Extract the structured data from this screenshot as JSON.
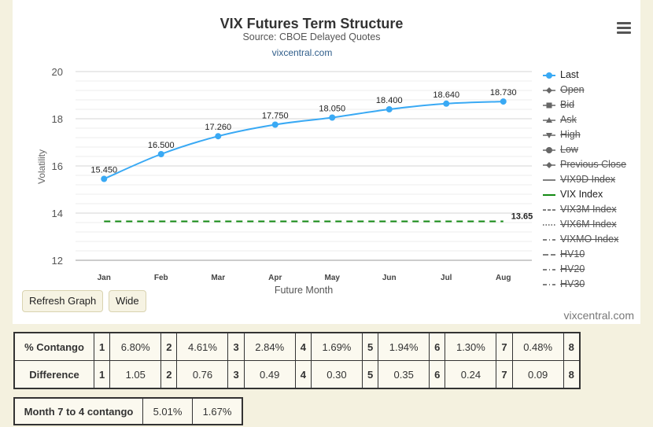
{
  "chart_data": {
    "type": "line",
    "title": "VIX Futures Term Structure",
    "subtitle": "Source: CBOE Delayed Quotes",
    "link": "vixcentral.com",
    "xlabel": "Future Month",
    "ylabel": "Volatility",
    "categories": [
      "Jan",
      "Feb",
      "Mar",
      "Apr",
      "May",
      "Jun",
      "Jul",
      "Aug"
    ],
    "ylim": [
      12,
      20
    ],
    "yticks": [
      12,
      14,
      16,
      18,
      20
    ],
    "grid": true,
    "legend_position": "right",
    "series": [
      {
        "name": "Last",
        "values": [
          15.45,
          16.5,
          17.26,
          17.75,
          18.05,
          18.4,
          18.64,
          18.73
        ],
        "labels": [
          "15.450",
          "16.500",
          "17.260",
          "17.750",
          "18.050",
          "18.400",
          "18.640",
          "18.730"
        ],
        "color": "#39a9f4"
      },
      {
        "name": "VIX Index",
        "value": 13.65,
        "label": "13.65",
        "color": "#138a13"
      }
    ]
  },
  "legend": [
    {
      "label": "Last",
      "visible": true,
      "symbol": "circle-line",
      "color": "#39a9f4"
    },
    {
      "label": "Open",
      "visible": false,
      "symbol": "diamond-line",
      "color": "#666666"
    },
    {
      "label": "Bid",
      "visible": false,
      "symbol": "square-line",
      "color": "#666666"
    },
    {
      "label": "Ask",
      "visible": false,
      "symbol": "triangle-line",
      "color": "#666666"
    },
    {
      "label": "High",
      "visible": false,
      "symbol": "triangle-down-line",
      "color": "#666666"
    },
    {
      "label": "Low",
      "visible": false,
      "symbol": "circle-line",
      "color": "#666666"
    },
    {
      "label": "Previous Close",
      "visible": false,
      "symbol": "diamond-line",
      "color": "#666666"
    },
    {
      "label": "VIX9D Index",
      "visible": false,
      "symbol": "solid",
      "color": "#555555"
    },
    {
      "label": "VIX Index",
      "visible": true,
      "symbol": "solid",
      "color": "#138a13"
    },
    {
      "label": "VIX3M Index",
      "visible": false,
      "symbol": "dash",
      "color": "#555555"
    },
    {
      "label": "VIX6M Index",
      "visible": false,
      "symbol": "dot",
      "color": "#555555"
    },
    {
      "label": "VIXMO Index",
      "visible": false,
      "symbol": "dashdot",
      "color": "#555555"
    },
    {
      "label": "HV10",
      "visible": false,
      "symbol": "longdash",
      "color": "#555555"
    },
    {
      "label": "HV20",
      "visible": false,
      "symbol": "dashdot",
      "color": "#555555"
    },
    {
      "label": "HV30",
      "visible": false,
      "symbol": "dashdot",
      "color": "#555555"
    }
  ],
  "buttons": {
    "refresh": "Refresh Graph",
    "wide": "Wide"
  },
  "credit": "vixcentral.com",
  "table": {
    "contango_label": "% Contango",
    "difference_label": "Difference",
    "months": [
      "1",
      "2",
      "3",
      "4",
      "5",
      "6",
      "7",
      "8"
    ],
    "contango": [
      "6.80%",
      "4.61%",
      "2.84%",
      "1.69%",
      "1.94%",
      "1.30%",
      "0.48%"
    ],
    "difference": [
      "1.05",
      "0.76",
      "0.49",
      "0.30",
      "0.35",
      "0.24",
      "0.09"
    ],
    "m74_label": "Month 7 to 4 contango",
    "m74_values": [
      "5.01%",
      "1.67%"
    ]
  }
}
